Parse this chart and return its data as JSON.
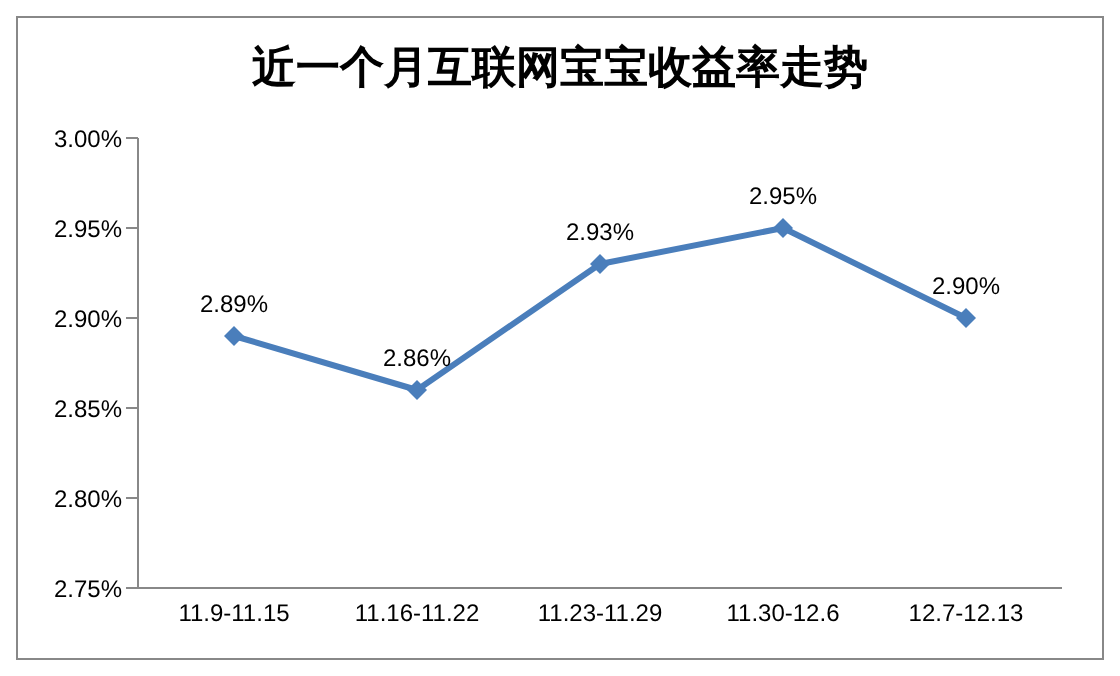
{
  "chart_data": {
    "type": "line",
    "title": "近一个月互联网宝宝收益率走势",
    "categories": [
      "11.9-11.15",
      "11.16-11.22",
      "11.23-11.29",
      "11.30-12.6",
      "12.7-12.13"
    ],
    "series": [
      {
        "color": "#4a7ebb",
        "values": [
          2.89,
          2.86,
          2.93,
          2.95,
          2.9
        ],
        "value_labels": [
          "2.89%",
          "2.86%",
          "2.93%",
          "2.95%",
          "2.90%"
        ]
      }
    ],
    "ylim": [
      2.75,
      3.0
    ],
    "yticks": [
      {
        "value": 2.75,
        "label": "2.75%"
      },
      {
        "value": 2.8,
        "label": "2.80%"
      },
      {
        "value": 2.85,
        "label": "2.85%"
      },
      {
        "value": 2.9,
        "label": "2.90%"
      },
      {
        "value": 2.95,
        "label": "2.95%"
      },
      {
        "value": 3.0,
        "label": "3.00%"
      }
    ],
    "marker": "diamond",
    "line_style": "solid",
    "grid": false,
    "legend": false
  }
}
